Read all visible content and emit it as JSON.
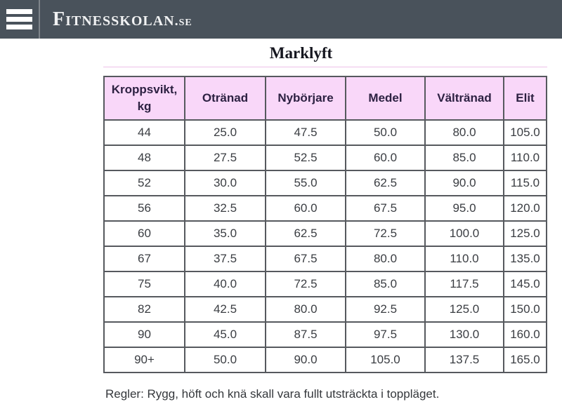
{
  "header": {
    "logo_main": "Fitnesskolan",
    "logo_suffix": ".se"
  },
  "page": {
    "title": "Marklyft",
    "footnote": "Regler: Rygg, höft och knä skall vara fullt utsträckta i toppläget."
  },
  "table": {
    "columns": [
      "Kroppsvikt, kg",
      "Otränad",
      "Nybörjare",
      "Medel",
      "Vältränad",
      "Elit"
    ],
    "rows": [
      [
        "44",
        "25.0",
        "47.5",
        "50.0",
        "80.0",
        "105.0"
      ],
      [
        "48",
        "27.5",
        "52.5",
        "60.0",
        "85.0",
        "110.0"
      ],
      [
        "52",
        "30.0",
        "55.0",
        "62.5",
        "90.0",
        "115.0"
      ],
      [
        "56",
        "32.5",
        "60.0",
        "67.5",
        "95.0",
        "120.0"
      ],
      [
        "60",
        "35.0",
        "62.5",
        "72.5",
        "100.0",
        "125.0"
      ],
      [
        "67",
        "37.5",
        "67.5",
        "80.0",
        "110.0",
        "135.0"
      ],
      [
        "75",
        "40.0",
        "72.5",
        "85.0",
        "117.5",
        "145.0"
      ],
      [
        "82",
        "42.5",
        "80.0",
        "92.5",
        "125.0",
        "150.0"
      ],
      [
        "90",
        "45.0",
        "87.5",
        "97.5",
        "130.0",
        "160.0"
      ],
      [
        "90+",
        "50.0",
        "90.0",
        "105.0",
        "137.5",
        "165.0"
      ]
    ]
  },
  "colors": {
    "header_bar": "#49525b",
    "table_header_bg": "#f9d7f9",
    "table_border": "#56595e",
    "accent_rule": "#edc0e9"
  }
}
